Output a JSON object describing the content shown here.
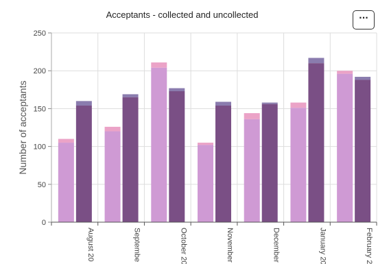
{
  "menu": {
    "label": "···"
  },
  "chart_data": {
    "type": "bar",
    "title": "Acceptants - collected and uncollected",
    "ylabel": "Number of acceptants",
    "xlabel": "",
    "ylim": [
      0,
      250
    ],
    "yticks": [
      0,
      50,
      100,
      150,
      200,
      250
    ],
    "grid": true,
    "categories": [
      "August 20",
      "Septembe",
      "October 20",
      "November",
      "December",
      "January 20",
      "February 2"
    ],
    "series": [
      {
        "group": "first",
        "color": "#cf9ad4",
        "top_color": "#eba3c7",
        "lower_values": [
          105,
          120,
          204,
          102,
          136,
          151,
          196
        ],
        "upper_values": [
          110,
          126,
          211,
          105,
          144,
          158,
          200
        ]
      },
      {
        "group": "second",
        "color": "#7a4f85",
        "top_color": "#8a7cae",
        "lower_values": [
          154,
          165,
          173,
          154,
          156,
          210,
          188
        ],
        "upper_values": [
          160,
          169,
          177,
          159,
          158,
          217,
          192
        ]
      }
    ]
  }
}
